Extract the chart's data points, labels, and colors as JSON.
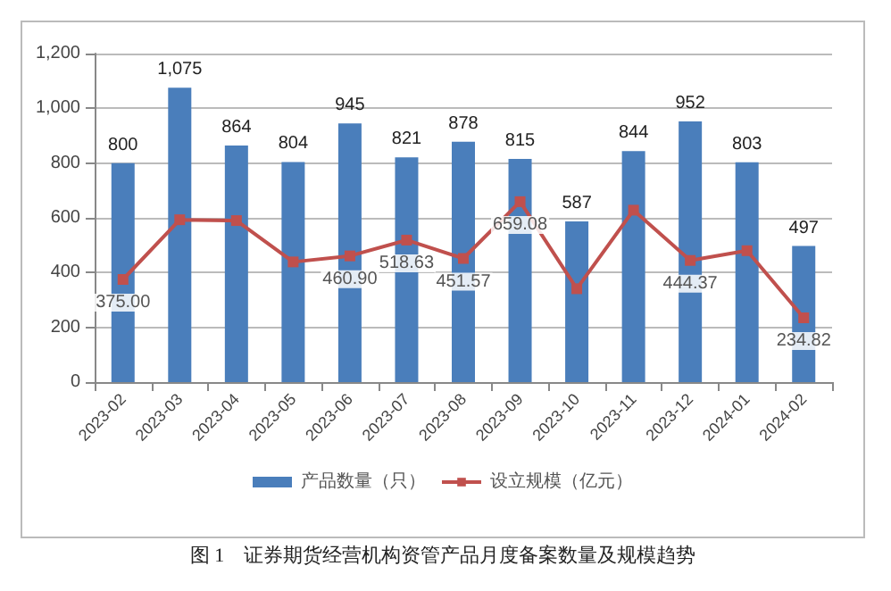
{
  "chart_data": {
    "type": "bar",
    "categories": [
      "2023-02",
      "2023-03",
      "2023-04",
      "2023-05",
      "2023-06",
      "2023-07",
      "2023-08",
      "2023-09",
      "2023-10",
      "2023-11",
      "2023-12",
      "2024-01",
      "2024-02"
    ],
    "series": [
      {
        "name": "产品数量（只）",
        "color": "#4a7ebb",
        "values": [
          800,
          1075,
          864,
          804,
          945,
          821,
          878,
          815,
          587,
          844,
          952,
          803,
          497
        ],
        "value_labels": [
          "800",
          "1,075",
          "864",
          "804",
          "945",
          "821",
          "878",
          "815",
          "587",
          "844",
          "952",
          "803",
          "497"
        ]
      },
      {
        "name": "设立规模（亿元）",
        "type": "line",
        "color": "#c0504d",
        "marker": "square",
        "values": [
          375.0,
          593,
          590,
          439,
          460.9,
          518.63,
          451.57,
          659.08,
          341,
          628,
          444.37,
          480,
          234.82
        ],
        "value_labels": [
          "375.00",
          null,
          null,
          null,
          "460.90",
          "518.63",
          "451.57",
          "659.08",
          null,
          null,
          "444.37",
          null,
          "234.82"
        ]
      }
    ],
    "ylim": [
      0,
      1200
    ],
    "yticks": [
      0,
      200,
      400,
      600,
      800,
      {
        "value": 1000,
        "label": "1,000"
      },
      {
        "value": 1200,
        "label": "1,200"
      }
    ],
    "grid": "y",
    "legend": "bottom",
    "annotations": [
      "图 1　证券期货经营机构资管产品月度备案数量及规模趋势"
    ]
  }
}
